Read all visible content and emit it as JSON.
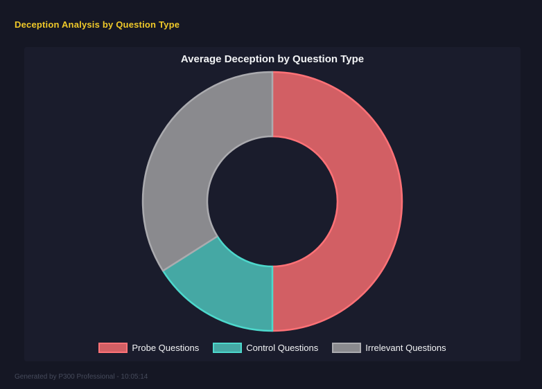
{
  "header": {
    "title": "Deception Analysis by Question Type"
  },
  "footer": {
    "text": "Generated by P300 Professional - 10:05:14"
  },
  "chart_data": {
    "type": "pie",
    "subtype": "doughnut",
    "title": "Average Deception by Question Type",
    "labels": [
      "Probe Questions",
      "Control Questions",
      "Irrelevant Questions"
    ],
    "values": [
      50,
      16,
      34
    ],
    "units": "percent of total (estimated from arc angles, no numeric labels shown)",
    "start_angle_deg": 0,
    "direction": "clockwise",
    "cutout_pct": 50,
    "legend_position": "bottom",
    "colors": {
      "fill": [
        "#d25f64",
        "#45a8a4",
        "#8a8a8e"
      ],
      "border": [
        "#ff7277",
        "#4dd8cc",
        "#ababaf"
      ]
    }
  },
  "theme": {
    "page_bg": "#151724",
    "panel_bg": "#1a1c2c",
    "page_title_color": "#f0c929",
    "chart_title_color": "#f2f3f5",
    "legend_text_color": "#f2f3f5",
    "footer_color": "#464b5c"
  }
}
